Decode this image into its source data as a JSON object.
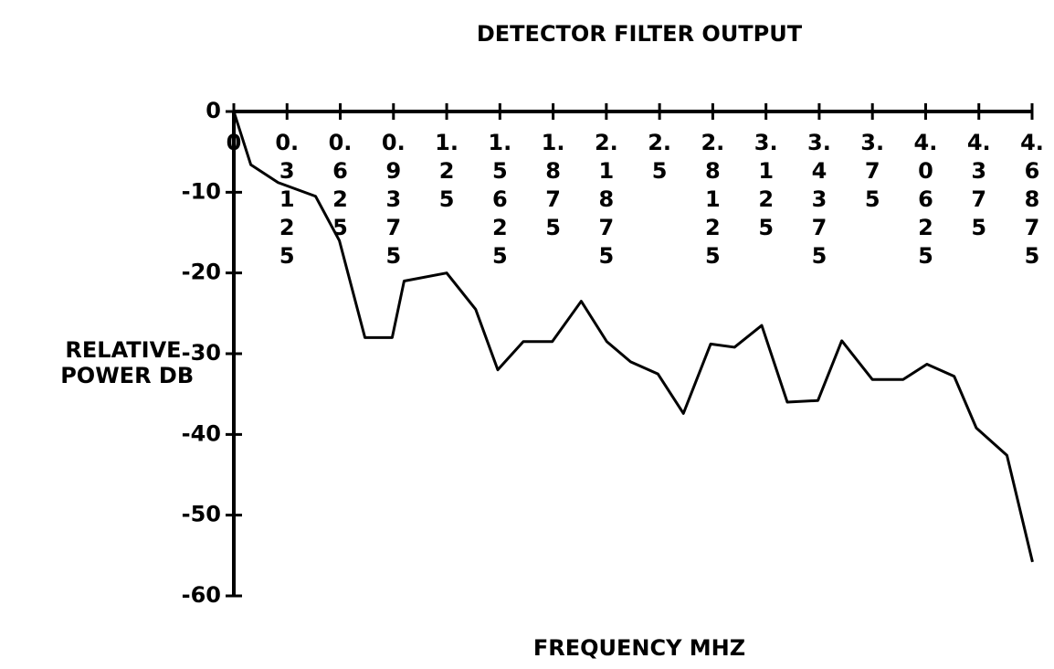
{
  "chart_data": {
    "type": "line",
    "title": "DETECTOR FILTER OUTPUT",
    "xlabel": "FREQUENCY MHZ",
    "ylabel": "RELATIVE POWER DB",
    "xlim": [
      0,
      4.6875
    ],
    "xticks": [
      0,
      0.3125,
      0.625,
      0.9375,
      1.25,
      1.5625,
      1.875,
      2.1875,
      2.5,
      2.8125,
      3.125,
      3.4375,
      3.75,
      4.0625,
      4.375,
      4.6875
    ],
    "ylim": [
      -60,
      0
    ],
    "yticks": [
      0,
      -10,
      -20,
      -30,
      -40,
      -50,
      -60
    ],
    "color": "#000000",
    "x": [
      0,
      0.1,
      0.26,
      0.48,
      0.62,
      0.77,
      0.93,
      1.0,
      1.25,
      1.42,
      1.55,
      1.7,
      1.87,
      2.04,
      2.19,
      2.33,
      2.49,
      2.64,
      2.8,
      2.94,
      3.1,
      3.25,
      3.43,
      3.57,
      3.75,
      3.93,
      4.07,
      4.23,
      4.36,
      4.54,
      4.69
    ],
    "values": [
      0,
      -6.6,
      -8.8,
      -10.5,
      -16,
      -28,
      -28,
      -21,
      -20,
      -24.5,
      -32,
      -28.5,
      -28.5,
      -23.5,
      -28.5,
      -31,
      -32.5,
      -37.4,
      -28.8,
      -29.2,
      -26.5,
      -36,
      -35.8,
      -28.4,
      -33.2,
      -33.2,
      -31.3,
      -32.8,
      -39.2,
      -42.6,
      -55.8
    ]
  }
}
